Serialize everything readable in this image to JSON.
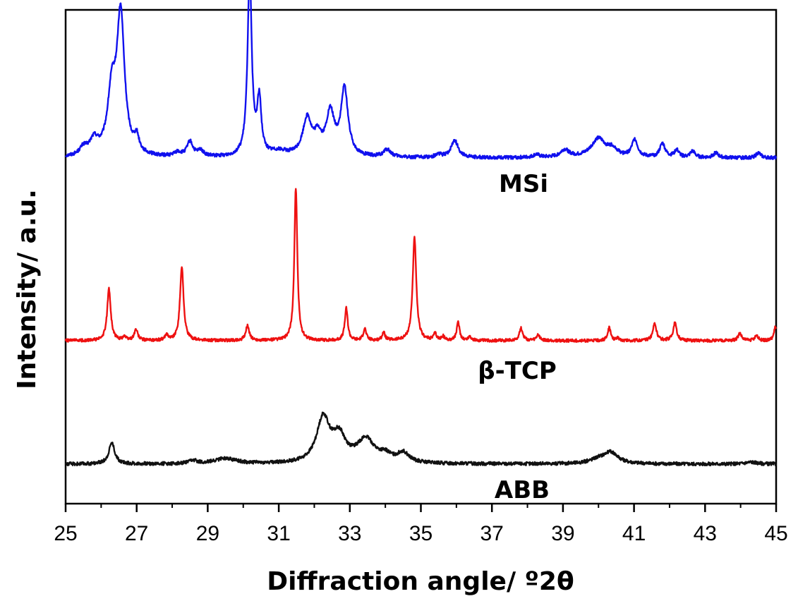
{
  "chart_data": {
    "type": "line",
    "title": "",
    "xlabel": "Diffraction angle/ º2θ",
    "ylabel": "Intensity/ a.u.",
    "xlim": [
      25,
      45
    ],
    "ylim": [
      0,
      100
    ],
    "x_ticks": [
      "25",
      "27",
      "29",
      "31",
      "33",
      "35",
      "37",
      "39",
      "41",
      "43",
      "45"
    ],
    "y_ticks_shown": false,
    "grid": false,
    "series": [
      {
        "name": "MSi",
        "color": "#1010ee",
        "baseline": 70,
        "noise": 0.35,
        "peaks": [
          [
            25.5,
            1.5,
            0.12
          ],
          [
            25.8,
            3.0,
            0.15
          ],
          [
            26.3,
            12.0,
            0.14
          ],
          [
            26.55,
            28.0,
            0.13
          ],
          [
            27.0,
            3.0,
            0.08
          ],
          [
            28.15,
            0.8,
            0.12
          ],
          [
            28.5,
            3.0,
            0.1
          ],
          [
            28.8,
            1.2,
            0.1
          ],
          [
            30.18,
            37.0,
            0.07
          ],
          [
            30.45,
            11.0,
            0.07
          ],
          [
            31.0,
            1.0,
            0.3
          ],
          [
            31.8,
            7.5,
            0.15
          ],
          [
            32.1,
            3.5,
            0.12
          ],
          [
            32.45,
            8.5,
            0.14
          ],
          [
            32.85,
            13.5,
            0.12
          ],
          [
            34.05,
            1.5,
            0.12
          ],
          [
            35.5,
            0.6,
            0.1
          ],
          [
            35.95,
            3.5,
            0.12
          ],
          [
            38.25,
            0.6,
            0.1
          ],
          [
            39.05,
            1.5,
            0.15
          ],
          [
            40.0,
            3.8,
            0.25
          ],
          [
            40.4,
            1.5,
            0.15
          ],
          [
            41.02,
            3.5,
            0.1
          ],
          [
            41.8,
            2.8,
            0.09
          ],
          [
            42.2,
            1.5,
            0.08
          ],
          [
            42.65,
            1.3,
            0.08
          ],
          [
            43.3,
            1.0,
            0.08
          ],
          [
            44.5,
            1.0,
            0.08
          ]
        ]
      },
      {
        "name": "β-TCP",
        "color": "#ee1111",
        "baseline": 33,
        "noise": 0.3,
        "peaks": [
          [
            26.22,
            10.5,
            0.06
          ],
          [
            26.65,
            0.8,
            0.05
          ],
          [
            26.98,
            2.2,
            0.06
          ],
          [
            27.85,
            1.2,
            0.05
          ],
          [
            28.27,
            15.0,
            0.06
          ],
          [
            30.12,
            3.0,
            0.06
          ],
          [
            31.48,
            31.0,
            0.05
          ],
          [
            32.9,
            6.5,
            0.05
          ],
          [
            33.42,
            2.4,
            0.05
          ],
          [
            33.95,
            1.6,
            0.05
          ],
          [
            34.82,
            21.0,
            0.06
          ],
          [
            35.4,
            1.3,
            0.05
          ],
          [
            35.62,
            0.8,
            0.05
          ],
          [
            36.05,
            3.6,
            0.05
          ],
          [
            36.38,
            0.8,
            0.05
          ],
          [
            37.82,
            2.5,
            0.06
          ],
          [
            38.3,
            1.2,
            0.05
          ],
          [
            40.3,
            2.6,
            0.05
          ],
          [
            40.55,
            0.5,
            0.05
          ],
          [
            41.58,
            3.5,
            0.06
          ],
          [
            42.15,
            3.5,
            0.06
          ],
          [
            43.98,
            1.5,
            0.06
          ],
          [
            44.45,
            1.1,
            0.05
          ],
          [
            44.98,
            2.8,
            0.05
          ]
        ]
      },
      {
        "name": "ABB",
        "color": "#111111",
        "baseline": 8,
        "noise": 0.35,
        "peaks": [
          [
            26.3,
            4.3,
            0.1
          ],
          [
            28.6,
            0.6,
            0.15
          ],
          [
            29.5,
            1.1,
            0.35
          ],
          [
            32.25,
            9.0,
            0.22
          ],
          [
            32.7,
            5.0,
            0.22
          ],
          [
            33.45,
            4.7,
            0.3
          ],
          [
            34.0,
            1.3,
            0.2
          ],
          [
            34.5,
            2.0,
            0.2
          ],
          [
            40.0,
            0.8,
            0.3
          ],
          [
            40.35,
            2.2,
            0.25
          ],
          [
            44.3,
            0.4,
            0.2
          ]
        ]
      }
    ]
  }
}
